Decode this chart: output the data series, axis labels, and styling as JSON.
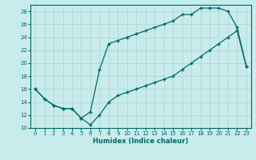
{
  "xlabel": "Humidex (Indice chaleur)",
  "ylabel": "",
  "bg_color": "#c8ecec",
  "grid_color": "#b0d8d8",
  "line_color": "#006868",
  "xlim": [
    -0.5,
    23.5
  ],
  "ylim": [
    10,
    29
  ],
  "xticks": [
    0,
    1,
    2,
    3,
    4,
    5,
    6,
    7,
    8,
    9,
    10,
    11,
    12,
    13,
    14,
    15,
    16,
    17,
    18,
    19,
    20,
    21,
    22,
    23
  ],
  "yticks": [
    10,
    12,
    14,
    16,
    18,
    20,
    22,
    24,
    26,
    28
  ],
  "upper_line_x": [
    0,
    1,
    2,
    3,
    4,
    5,
    6,
    7,
    8,
    9,
    10,
    11,
    12,
    13,
    14,
    15,
    16,
    17,
    18,
    19,
    20,
    21,
    22,
    23
  ],
  "upper_line_y": [
    16,
    14.5,
    13.5,
    13,
    13,
    11.5,
    12.5,
    19,
    23,
    23.5,
    24,
    24.5,
    25,
    25.5,
    26,
    26.5,
    27.5,
    27.5,
    28.5,
    28.5,
    28.5,
    28,
    25.5,
    19.5
  ],
  "lower_line_x": [
    0,
    1,
    2,
    3,
    4,
    5,
    6,
    7,
    8,
    9,
    10,
    11,
    12,
    13,
    14,
    15,
    16,
    17,
    18,
    19,
    20,
    21,
    22,
    23
  ],
  "lower_line_y": [
    16,
    14.5,
    13.5,
    13,
    13,
    11.5,
    10.5,
    12,
    14,
    15,
    15.5,
    16,
    16.5,
    17,
    17.5,
    18,
    19,
    20,
    21,
    22,
    23,
    24,
    25,
    19.5
  ]
}
